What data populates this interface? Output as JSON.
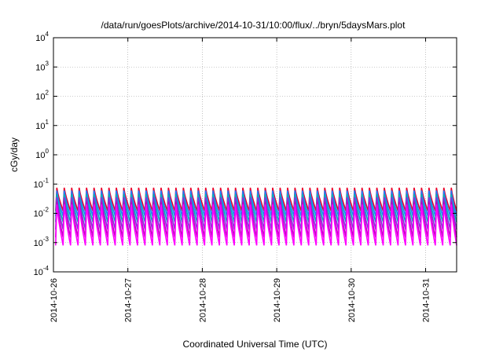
{
  "chart_data": {
    "type": "line",
    "title": "/data/run/goesPlots/archive/2014-10-31/10:00/flux/../bryn/5daysMars.plot",
    "xlabel": "Coordinated Universal Time (UTC)",
    "ylabel": "cGy/day",
    "xlim": [
      "2014-10-26T00:00",
      "2014-10-31T10:00"
    ],
    "x_ticks": [
      "2014-10-26",
      "2014-10-27",
      "2014-10-28",
      "2014-10-29",
      "2014-10-30",
      "2014-10-31"
    ],
    "ylim": [
      0.0001,
      10000
    ],
    "yscale": "log",
    "y_ticks": [
      {
        "base": "10",
        "exp": "-4",
        "value": 0.0001
      },
      {
        "base": "10",
        "exp": "-3",
        "value": 0.001
      },
      {
        "base": "10",
        "exp": "-2",
        "value": 0.01
      },
      {
        "base": "10",
        "exp": "-1",
        "value": 0.1
      },
      {
        "base": "10",
        "exp": "0",
        "value": 1
      },
      {
        "base": "10",
        "exp": "1",
        "value": 10
      },
      {
        "base": "10",
        "exp": "2",
        "value": 100
      },
      {
        "base": "10",
        "exp": "3",
        "value": 1000
      },
      {
        "base": "10",
        "exp": "4",
        "value": 10000
      }
    ],
    "grid": true,
    "legend": "none",
    "cycle_hours": 2.4,
    "series": [
      {
        "color": "#e8002a",
        "peak": 0.075,
        "trough": 0.012
      },
      {
        "color": "#1e7fff",
        "peak": 0.06,
        "trough": 0.008
      },
      {
        "color": "#00b3b3",
        "peak": 0.045,
        "trough": 0.005
      },
      {
        "color": "#8a2be2",
        "peak": 0.035,
        "trough": 0.0028
      },
      {
        "color": "#c000c0",
        "peak": 0.025,
        "trough": 0.0015
      },
      {
        "color": "#ff00ff",
        "peak": 0.02,
        "trough": 0.0008
      }
    ]
  }
}
